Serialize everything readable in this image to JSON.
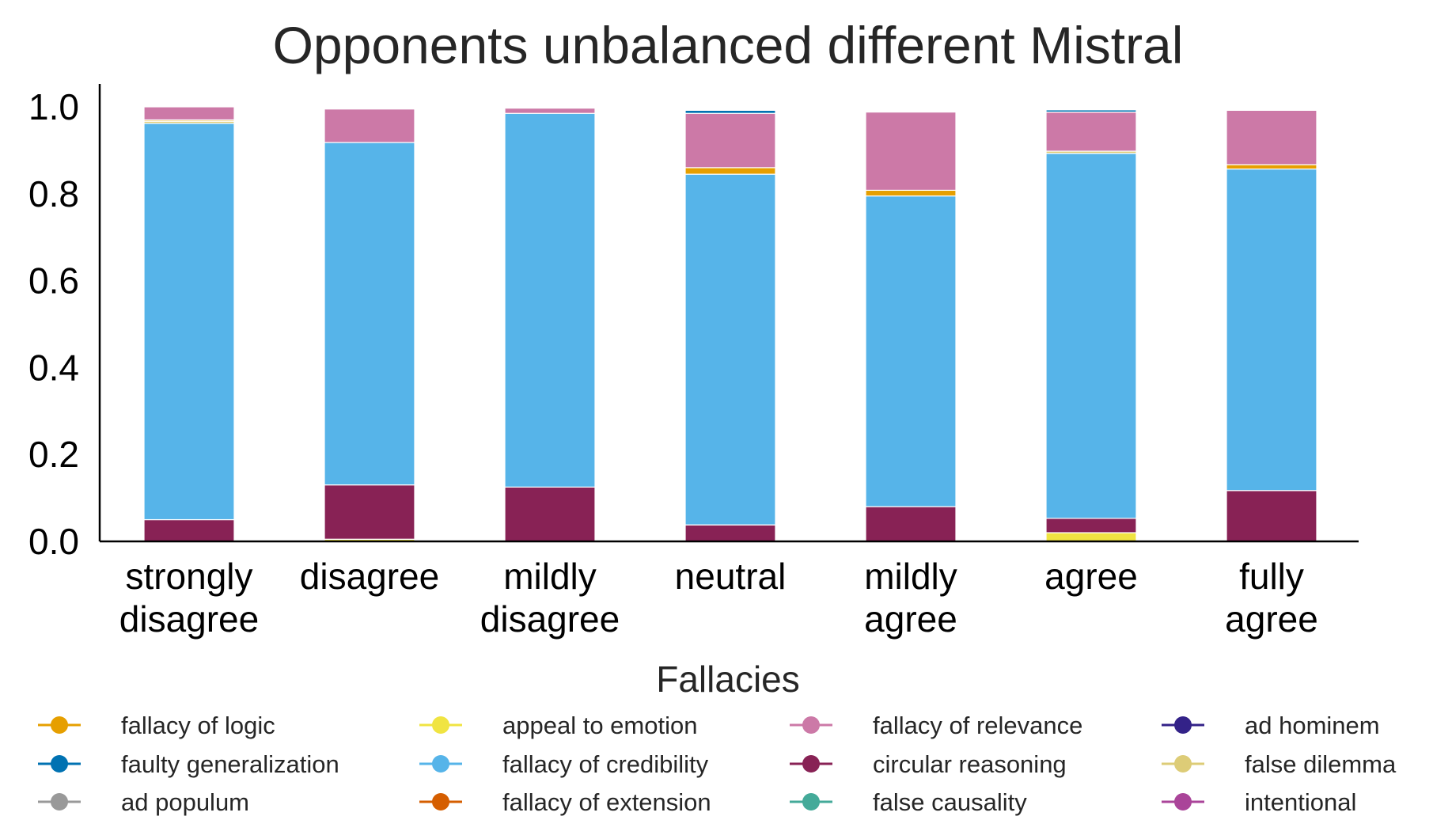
{
  "chart_data": {
    "type": "bar",
    "stacked": true,
    "title": "Opponents unbalanced different Mistral",
    "xlabel": "",
    "ylabel": "",
    "ylim": [
      0,
      1.05
    ],
    "yticks": [
      "0.0",
      "0.2",
      "0.4",
      "0.6",
      "0.8",
      "1.0"
    ],
    "grid": false,
    "categories": [
      [
        "strongly",
        "disagree"
      ],
      [
        "disagree"
      ],
      [
        "mildly",
        "disagree"
      ],
      [
        "neutral"
      ],
      [
        "mildly",
        "agree"
      ],
      [
        "agree"
      ],
      [
        "fully",
        "agree"
      ]
    ],
    "legend": {
      "title": "Fallacies",
      "placement": "bottom",
      "columns": 4
    },
    "series": [
      {
        "name": "intentional",
        "color": "#AA4499",
        "values": [
          0,
          0,
          0,
          0,
          0,
          0,
          0
        ]
      },
      {
        "name": "appeal to emotion",
        "color": "#F0E442",
        "values": [
          0,
          0.005,
          0,
          0,
          0,
          0.02,
          0
        ]
      },
      {
        "name": "ad populum",
        "color": "#999999",
        "values": [
          0,
          0,
          0,
          0,
          0,
          0,
          0
        ]
      },
      {
        "name": "circular reasoning",
        "color": "#882255",
        "values": [
          0.05,
          0.125,
          0.125,
          0.038,
          0.08,
          0.033,
          0.117
        ]
      },
      {
        "name": "fallacy of credibility",
        "color": "#56B4E9",
        "values": [
          0.912,
          0.788,
          0.86,
          0.807,
          0.715,
          0.84,
          0.74
        ]
      },
      {
        "name": "false dilemma",
        "color": "#DDCC77",
        "values": [
          0.005,
          0,
          0,
          0,
          0,
          0.005,
          0
        ]
      },
      {
        "name": "fallacy of logic",
        "color": "#E69F00",
        "values": [
          0.003,
          0,
          0,
          0.015,
          0.013,
          0,
          0.01
        ]
      },
      {
        "name": "fallacy of extension",
        "color": "#D55E00",
        "values": [
          0,
          0,
          0,
          0,
          0,
          0,
          0
        ]
      },
      {
        "name": "false causality",
        "color": "#44AA99",
        "values": [
          0,
          0,
          0,
          0,
          0,
          0,
          0
        ]
      },
      {
        "name": "fallacy of relevance",
        "color": "#CC79A7",
        "values": [
          0.03,
          0.077,
          0.012,
          0.125,
          0.18,
          0.09,
          0.125
        ]
      },
      {
        "name": "faulty generalization",
        "color": "#0072B2",
        "values": [
          0,
          0,
          0,
          0.007,
          0,
          0.005,
          0
        ]
      },
      {
        "name": "ad hominem",
        "color": "#332288",
        "values": [
          0,
          0,
          0,
          0,
          0,
          0,
          0
        ]
      }
    ],
    "legend_order": [
      [
        "fallacy of logic",
        "faulty generalization",
        "ad populum"
      ],
      [
        "appeal to emotion",
        "fallacy of credibility",
        "fallacy of extension"
      ],
      [
        "fallacy of relevance",
        "circular reasoning",
        "false causality"
      ],
      [
        "ad hominem",
        "false dilemma",
        "intentional"
      ]
    ]
  }
}
